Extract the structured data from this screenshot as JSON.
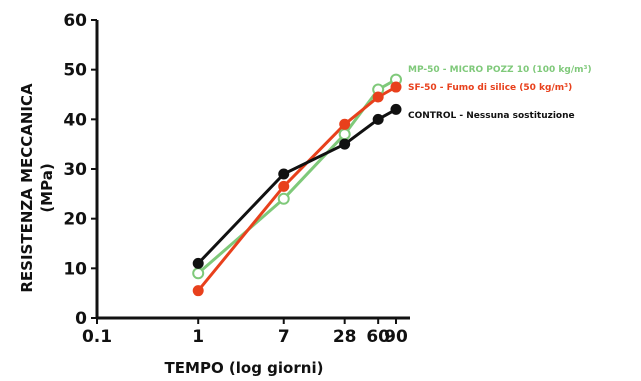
{
  "chart_data": {
    "type": "line",
    "xscale": "log",
    "xlabel": "TEMPO (log giorni)",
    "ylabel_line1": "RESISTENZA MECCANICA",
    "ylabel_line2": "(MPa)",
    "ylim": [
      0,
      60
    ],
    "xticks": [
      {
        "value": 0.1,
        "label": "0.1"
      },
      {
        "value": 1,
        "label": "1"
      },
      {
        "value": 7,
        "label": "7"
      },
      {
        "value": 28,
        "label": "28"
      },
      {
        "value": 60,
        "label": "60"
      },
      {
        "value": 90,
        "label": "90"
      }
    ],
    "yticks": [
      {
        "value": 0,
        "label": "0"
      },
      {
        "value": 10,
        "label": "10"
      },
      {
        "value": 20,
        "label": "20"
      },
      {
        "value": 30,
        "label": "30"
      },
      {
        "value": 40,
        "label": "40"
      },
      {
        "value": 50,
        "label": "50"
      },
      {
        "value": 60,
        "label": "60"
      }
    ],
    "x": [
      1,
      7,
      28,
      60,
      90
    ],
    "series": [
      {
        "name": "MP-50 - MICRO POZZ 10 (100 kg/m³)",
        "color": "#7fc97a",
        "marker": "open-circle",
        "values": [
          9,
          24,
          37,
          46,
          48
        ]
      },
      {
        "name": "SF-50 - Fumo di silice (50 kg/m³)",
        "color": "#e8401c",
        "marker": "filled-circle",
        "values": [
          5.5,
          26.5,
          39,
          44.5,
          46.5
        ]
      },
      {
        "name": "CONTROL - Nessuna sostituzione",
        "color": "#111111",
        "marker": "filled-circle",
        "values": [
          11,
          29,
          35,
          40,
          42
        ]
      }
    ]
  }
}
